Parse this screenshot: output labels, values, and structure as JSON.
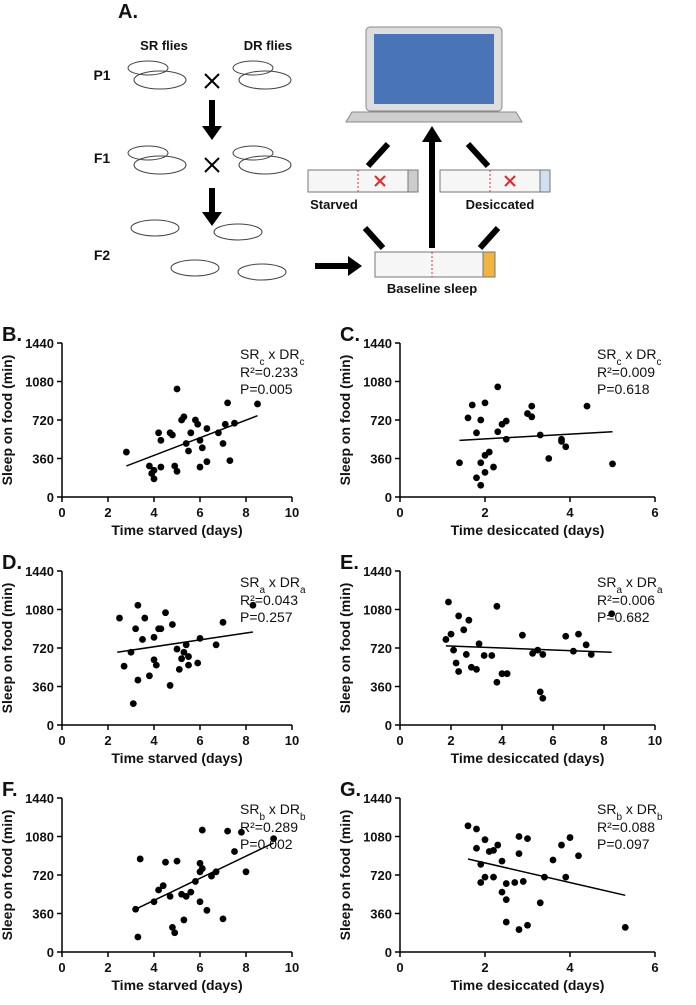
{
  "diagram": {
    "label": "A.",
    "sr": "SR flies",
    "dr": "DR flies",
    "gens": [
      "P1",
      "F1",
      "F2"
    ],
    "starved": "Starved",
    "desiccated": "Desiccated",
    "baseline": "Baseline sleep"
  },
  "chart_data": [
    {
      "type": "scatter",
      "label": "B.",
      "xlabel": "Time starved (days)",
      "ylabel": "Sleep on food (min)",
      "genotype": [
        "SR",
        "c",
        " x DR",
        "c"
      ],
      "r2": "R²=0.233",
      "p": "P=0.005",
      "xlim": [
        0,
        10
      ],
      "xticks": [
        0,
        2,
        4,
        6,
        8,
        10
      ],
      "ylim": [
        0,
        1440
      ],
      "yticks": [
        0,
        360,
        720,
        1080,
        1440
      ],
      "x": [
        2.8,
        3.8,
        3.9,
        4.0,
        4.0,
        4.2,
        4.3,
        4.3,
        4.7,
        4.8,
        4.9,
        5.0,
        5.0,
        5.2,
        5.3,
        5.4,
        5.5,
        5.6,
        5.8,
        5.9,
        6.0,
        6.0,
        6.1,
        6.3,
        6.3,
        6.8,
        7.0,
        7.1,
        7.2,
        7.3,
        7.5,
        8.5
      ],
      "values": [
        420,
        290,
        220,
        170,
        250,
        600,
        530,
        280,
        600,
        580,
        290,
        240,
        1010,
        720,
        750,
        500,
        430,
        600,
        720,
        680,
        530,
        280,
        460,
        330,
        640,
        600,
        500,
        680,
        880,
        340,
        690,
        870
      ],
      "fit_x": [
        2.8,
        8.5
      ],
      "fit_y": [
        290,
        760
      ]
    },
    {
      "type": "scatter",
      "label": "C.",
      "xlabel": "Time desiccated (days)",
      "ylabel": "Sleep on food (min)",
      "genotype": [
        "SR",
        "c",
        " x DR",
        "c"
      ],
      "r2": "R²=0.009",
      "p": "P=0.618",
      "xlim": [
        0,
        6
      ],
      "xticks": [
        0,
        2,
        4,
        6
      ],
      "ylim": [
        0,
        1440
      ],
      "yticks": [
        0,
        360,
        720,
        1080,
        1440
      ],
      "x": [
        1.4,
        1.6,
        1.7,
        1.8,
        1.8,
        1.9,
        1.9,
        2.0,
        2.0,
        2.1,
        2.2,
        2.3,
        2.3,
        2.4,
        2.5,
        2.5,
        3.0,
        3.1,
        3.1,
        3.3,
        3.5,
        3.8,
        3.8,
        3.9,
        4.4,
        5.0,
        1.9,
        2.0
      ],
      "values": [
        320,
        740,
        860,
        600,
        180,
        110,
        320,
        880,
        390,
        420,
        280,
        1030,
        610,
        680,
        710,
        540,
        780,
        750,
        850,
        580,
        360,
        520,
        540,
        470,
        850,
        310,
        720,
        230
      ],
      "fit_x": [
        1.4,
        5.0
      ],
      "fit_y": [
        530,
        610
      ]
    },
    {
      "type": "scatter",
      "label": "D.",
      "xlabel": "Time starved (days)",
      "ylabel": "Sleep on food (min)",
      "genotype": [
        "SR",
        "a",
        " x DR",
        "a"
      ],
      "r2": "R²=0.043",
      "p": "P=0.257",
      "xlim": [
        0,
        10
      ],
      "xticks": [
        0,
        2,
        4,
        6,
        8,
        10
      ],
      "ylim": [
        0,
        1440
      ],
      "yticks": [
        0,
        360,
        720,
        1080,
        1440
      ],
      "x": [
        2.5,
        2.7,
        3.0,
        3.1,
        3.2,
        3.3,
        3.3,
        3.5,
        3.6,
        3.8,
        4.0,
        4.0,
        4.1,
        4.2,
        4.3,
        4.5,
        4.8,
        5.0,
        5.1,
        5.2,
        5.3,
        5.4,
        5.5,
        5.5,
        5.9,
        6.0,
        6.7,
        7.0,
        4.7,
        8.3
      ],
      "values": [
        1000,
        550,
        680,
        200,
        900,
        420,
        1120,
        800,
        1000,
        460,
        820,
        610,
        560,
        900,
        900,
        1050,
        940,
        710,
        520,
        620,
        680,
        750,
        560,
        640,
        580,
        810,
        750,
        960,
        370,
        1120
      ],
      "fit_x": [
        2.4,
        8.3
      ],
      "fit_y": [
        680,
        870
      ]
    },
    {
      "type": "scatter",
      "label": "E.",
      "xlabel": "Time desiccated (days)",
      "ylabel": "Sleep on food (min)",
      "genotype": [
        "SR",
        "a",
        " x DR",
        "a"
      ],
      "r2": "R²=0.006",
      "p": "P=0.682",
      "xlim": [
        0,
        10
      ],
      "xticks": [
        0,
        2,
        4,
        6,
        8,
        10
      ],
      "ylim": [
        0,
        1440
      ],
      "yticks": [
        0,
        360,
        720,
        1080,
        1440
      ],
      "x": [
        1.8,
        1.9,
        2.0,
        2.1,
        2.2,
        2.3,
        2.3,
        2.5,
        2.6,
        2.7,
        2.8,
        3.0,
        3.1,
        3.3,
        3.6,
        3.8,
        3.8,
        4.0,
        4.2,
        4.8,
        5.2,
        5.4,
        5.5,
        5.6,
        5.6,
        6.5,
        6.8,
        7.0,
        7.3,
        7.5,
        8.3
      ],
      "values": [
        800,
        1150,
        850,
        700,
        580,
        500,
        1020,
        890,
        660,
        980,
        540,
        520,
        760,
        650,
        650,
        1110,
        400,
        480,
        480,
        840,
        670,
        700,
        310,
        250,
        660,
        830,
        690,
        850,
        750,
        660,
        1040
      ],
      "fit_x": [
        1.8,
        8.3
      ],
      "fit_y": [
        740,
        680
      ]
    },
    {
      "type": "scatter",
      "label": "F.",
      "xlabel": "Time starved (days)",
      "ylabel": "Sleep on food (min)",
      "genotype": [
        "SR",
        "b",
        " x DR",
        "b"
      ],
      "r2": "R²=0.289",
      "p": "P=0.002",
      "xlim": [
        0,
        10
      ],
      "xticks": [
        0,
        2,
        4,
        6,
        8,
        10
      ],
      "ylim": [
        0,
        1440
      ],
      "yticks": [
        0,
        360,
        720,
        1080,
        1440
      ],
      "x": [
        3.2,
        3.3,
        3.4,
        4.0,
        4.2,
        4.4,
        4.5,
        4.7,
        4.8,
        4.9,
        5.0,
        5.2,
        5.3,
        5.4,
        5.6,
        5.8,
        6.0,
        6.0,
        6.0,
        6.1,
        6.1,
        6.3,
        6.5,
        6.7,
        7.0,
        7.2,
        7.5,
        7.8,
        8.0,
        9.2
      ],
      "values": [
        400,
        140,
        870,
        470,
        580,
        620,
        840,
        520,
        230,
        180,
        850,
        540,
        300,
        520,
        560,
        660,
        750,
        830,
        470,
        780,
        1140,
        390,
        710,
        750,
        310,
        1130,
        940,
        1120,
        750,
        1060
      ],
      "fit_x": [
        3.2,
        9.2
      ],
      "fit_y": [
        400,
        1020
      ]
    },
    {
      "type": "scatter",
      "label": "G.",
      "xlabel": "Time desiccated (days)",
      "ylabel": "Sleep on food (min)",
      "genotype": [
        "SR",
        "b",
        " x DR",
        "b"
      ],
      "r2": "R²=0.088",
      "p": "P=0.097",
      "xlim": [
        0,
        6
      ],
      "xticks": [
        0,
        2,
        4,
        6
      ],
      "ylim": [
        0,
        1440
      ],
      "yticks": [
        0,
        360,
        720,
        1080,
        1440
      ],
      "x": [
        1.6,
        1.8,
        1.8,
        1.9,
        1.9,
        2.0,
        2.0,
        2.1,
        2.2,
        2.2,
        2.3,
        2.4,
        2.4,
        2.5,
        2.5,
        2.5,
        2.7,
        2.8,
        2.8,
        2.8,
        2.9,
        3.0,
        3.0,
        3.3,
        3.4,
        3.6,
        3.8,
        3.9,
        4.0,
        4.2,
        5.3
      ],
      "values": [
        1180,
        1150,
        970,
        650,
        820,
        1050,
        700,
        940,
        950,
        700,
        1000,
        850,
        560,
        640,
        490,
        280,
        650,
        1080,
        210,
        920,
        660,
        250,
        1060,
        460,
        700,
        860,
        1000,
        700,
        1070,
        900,
        230
      ],
      "fit_x": [
        1.6,
        5.3
      ],
      "fit_y": [
        870,
        530
      ]
    }
  ]
}
